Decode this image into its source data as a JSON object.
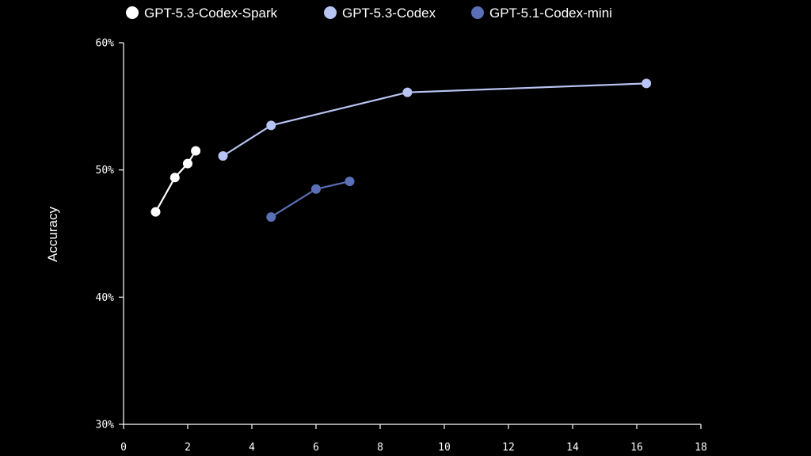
{
  "chart_data": {
    "type": "line",
    "title": "",
    "xlabel": "",
    "ylabel": "Accuracy",
    "xlim": [
      0,
      18
    ],
    "ylim": [
      30,
      60
    ],
    "x_ticks": [
      {
        "value": 0,
        "label": "0"
      },
      {
        "value": 2,
        "label": "2"
      },
      {
        "value": 4,
        "label": "4"
      },
      {
        "value": 6,
        "label": "6"
      },
      {
        "value": 8,
        "label": "8"
      },
      {
        "value": 10,
        "label": "10"
      },
      {
        "value": 12,
        "label": "12"
      },
      {
        "value": 14,
        "label": "14"
      },
      {
        "value": 16,
        "label": "16"
      },
      {
        "value": 18,
        "label": "18"
      }
    ],
    "y_ticks": [
      {
        "value": 30,
        "label": "30%"
      },
      {
        "value": 40,
        "label": "40%"
      },
      {
        "value": 50,
        "label": "50%"
      },
      {
        "value": 60,
        "label": "60%"
      }
    ],
    "grid": false,
    "legend_position": "top",
    "series": [
      {
        "name": "GPT-5.3-Codex-Spark",
        "color": "#ffffff",
        "points": [
          {
            "x": 1.0,
            "y": 46.7
          },
          {
            "x": 1.6,
            "y": 49.4
          },
          {
            "x": 2.0,
            "y": 50.5
          },
          {
            "x": 2.25,
            "y": 51.5
          }
        ]
      },
      {
        "name": "GPT-5.3-Codex",
        "color": "#b8c4f2",
        "points": [
          {
            "x": 3.1,
            "y": 51.1
          },
          {
            "x": 4.6,
            "y": 53.5
          },
          {
            "x": 8.85,
            "y": 56.1
          },
          {
            "x": 16.3,
            "y": 56.8
          }
        ]
      },
      {
        "name": "GPT-5.1-Codex-mini",
        "color": "#5a6fb5",
        "points": [
          {
            "x": 4.6,
            "y": 46.3
          },
          {
            "x": 6.0,
            "y": 48.5
          },
          {
            "x": 7.05,
            "y": 49.1
          }
        ]
      }
    ]
  }
}
